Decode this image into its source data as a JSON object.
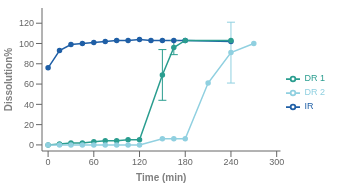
{
  "chart_data": {
    "type": "line",
    "xlabel": "Time (min)",
    "ylabel": "Dissolution%",
    "xlim": [
      -8,
      305
    ],
    "xticks": [
      0,
      60,
      120,
      180,
      240,
      300
    ],
    "ylim": [
      -6,
      135
    ],
    "yticks": [
      0,
      20,
      40,
      60,
      80,
      100,
      120
    ],
    "legend": "right",
    "marker": "circle",
    "series": [
      {
        "name": "IR",
        "color": "#1f5fa6",
        "x": [
          0,
          15,
          30,
          45,
          60,
          75,
          90,
          105,
          120,
          135,
          150,
          165,
          180,
          240
        ],
        "values": [
          76,
          93,
          99,
          100,
          101,
          102,
          103,
          103,
          104,
          103,
          103,
          103,
          103,
          102
        ]
      },
      {
        "name": "DR 1",
        "color": "#2a9d8f",
        "x": [
          0,
          15,
          30,
          45,
          60,
          75,
          90,
          105,
          120,
          150,
          165,
          180,
          240
        ],
        "values": [
          0,
          1,
          2,
          2,
          3,
          4,
          4,
          5,
          5,
          69,
          96,
          103,
          103
        ],
        "yerr": [
          null,
          null,
          null,
          null,
          null,
          null,
          null,
          null,
          null,
          25,
          7,
          null,
          null
        ]
      },
      {
        "name": "DR 2",
        "color": "#90d0e0",
        "x": [
          0,
          15,
          30,
          45,
          60,
          75,
          90,
          105,
          120,
          150,
          165,
          180,
          210,
          240,
          270
        ],
        "values": [
          0,
          0,
          0,
          0,
          0,
          0,
          0,
          0,
          0,
          6,
          6,
          6,
          61,
          91,
          100
        ],
        "yerr": [
          null,
          null,
          null,
          null,
          null,
          null,
          null,
          null,
          null,
          null,
          null,
          null,
          null,
          30,
          null
        ]
      }
    ]
  }
}
